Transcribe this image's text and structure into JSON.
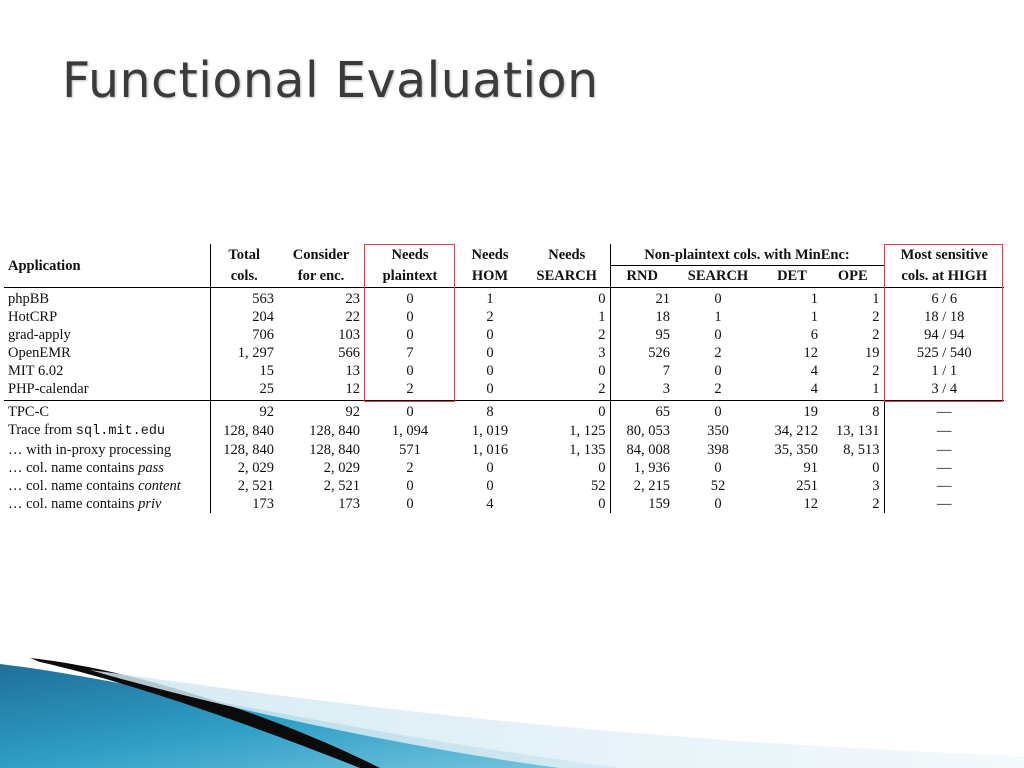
{
  "slide": {
    "title": "Functional Evaluation"
  },
  "table": {
    "headers": {
      "application": "Application",
      "total": [
        "Total",
        "cols."
      ],
      "consider": [
        "Consider",
        "for enc."
      ],
      "needs_plaintext": [
        "Needs",
        "plaintext"
      ],
      "needs_hom": [
        "Needs",
        "HOM"
      ],
      "needs_search": [
        "Needs",
        "SEARCH"
      ],
      "minenc_group": "Non-plaintext cols. with MinEnc:",
      "minenc": [
        "RND",
        "SEARCH",
        "DET",
        "OPE"
      ],
      "most_sensitive": [
        "Most sensitive",
        "cols. at HIGH"
      ]
    },
    "group1": [
      {
        "app": "phpBB",
        "cells": [
          "563",
          "23",
          "0",
          "1",
          "0",
          "21",
          "0",
          "1",
          "1",
          "6 / 6"
        ]
      },
      {
        "app": "HotCRP",
        "cells": [
          "204",
          "22",
          "0",
          "2",
          "1",
          "18",
          "1",
          "1",
          "2",
          "18 / 18"
        ]
      },
      {
        "app": "grad-apply",
        "cells": [
          "706",
          "103",
          "0",
          "0",
          "2",
          "95",
          "0",
          "6",
          "2",
          "94 / 94"
        ]
      },
      {
        "app": "OpenEMR",
        "cells": [
          "1, 297",
          "566",
          "7",
          "0",
          "3",
          "526",
          "2",
          "12",
          "19",
          "525 / 540"
        ]
      },
      {
        "app": "MIT 6.02",
        "cells": [
          "15",
          "13",
          "0",
          "0",
          "0",
          "7",
          "0",
          "4",
          "2",
          "1 / 1"
        ]
      },
      {
        "app": "PHP-calendar",
        "cells": [
          "25",
          "12",
          "2",
          "0",
          "2",
          "3",
          "2",
          "4",
          "1",
          "3 / 4"
        ]
      }
    ],
    "group2": [
      {
        "app": "TPC-C",
        "cells": [
          "92",
          "92",
          "0",
          "8",
          "0",
          "65",
          "0",
          "19",
          "8",
          "—"
        ]
      },
      {
        "app_prefix": "Trace from ",
        "app_mono": "sql.mit.edu",
        "cells": [
          "128, 840",
          "128, 840",
          "1, 094",
          "1, 019",
          "1, 125",
          "80, 053",
          "350",
          "34, 212",
          "13, 131",
          "—"
        ]
      },
      {
        "app": "… with in-proxy processing",
        "cells": [
          "128, 840",
          "128, 840",
          "571",
          "1, 016",
          "1, 135",
          "84, 008",
          "398",
          "35, 350",
          "8, 513",
          "—"
        ]
      },
      {
        "app_prefix": "… col. name contains ",
        "app_italic": "pass",
        "cells": [
          "2, 029",
          "2, 029",
          "2",
          "0",
          "0",
          "1, 936",
          "0",
          "91",
          "0",
          "—"
        ]
      },
      {
        "app_prefix": "… col. name contains ",
        "app_italic": "content",
        "cells": [
          "2, 521",
          "2, 521",
          "0",
          "0",
          "52",
          "2, 215",
          "52",
          "251",
          "3",
          "—"
        ]
      },
      {
        "app_prefix": "… col. name contains ",
        "app_italic": "priv",
        "cells": [
          "173",
          "173",
          "0",
          "4",
          "0",
          "159",
          "0",
          "12",
          "2",
          "—"
        ]
      }
    ]
  },
  "colors": {
    "highlight_box": "#d9434f",
    "title_text": "#3b3b3b",
    "decor_blue": "#2a93b8",
    "decor_dark": "#0b0b0b"
  }
}
